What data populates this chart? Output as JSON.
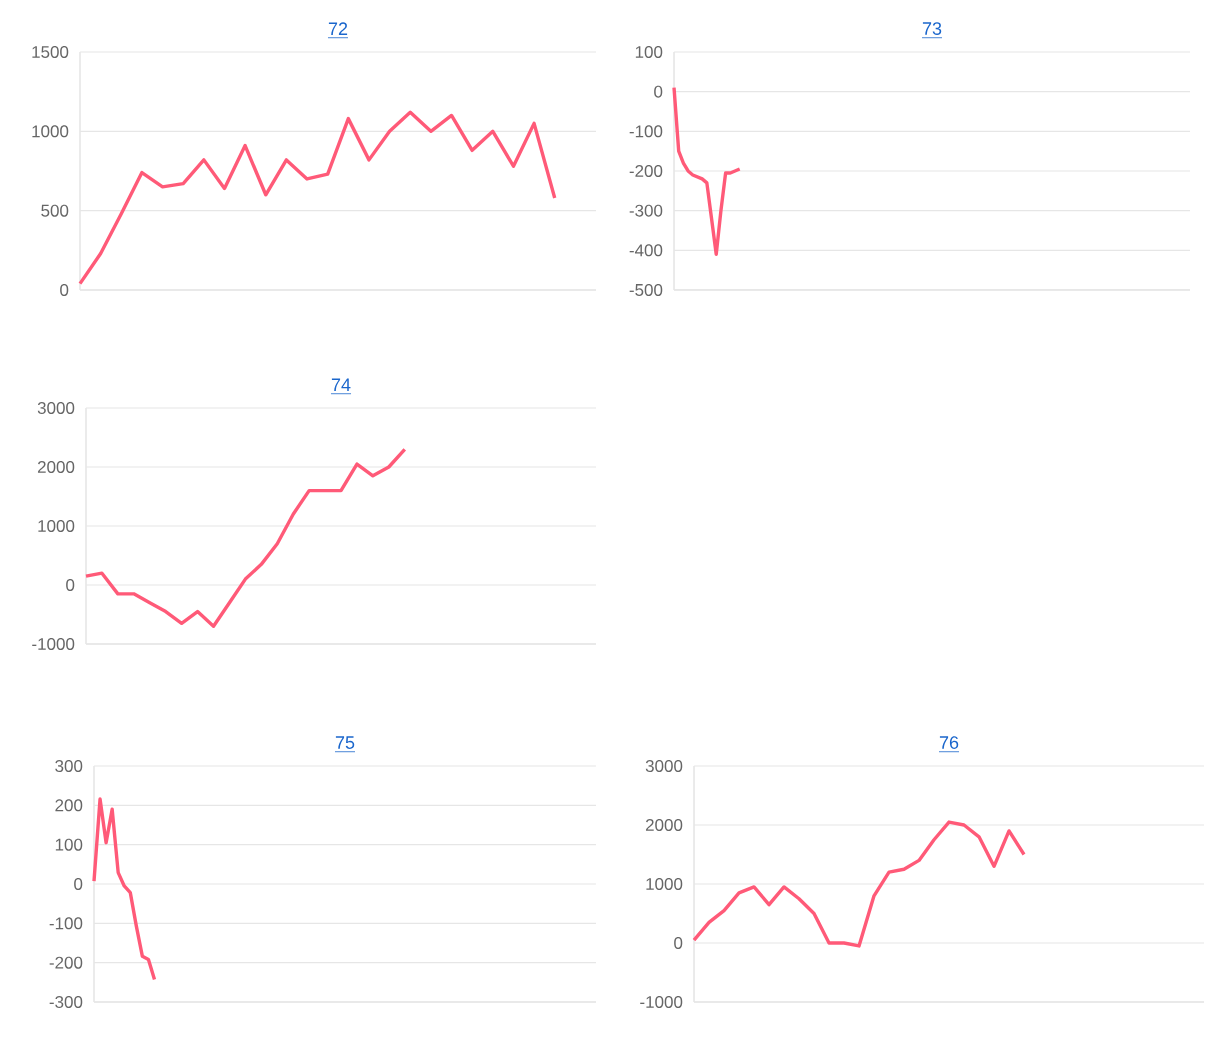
{
  "chart_data": [
    {
      "type": "line",
      "title": "72",
      "color": "#ff5a78",
      "grid": "y",
      "categories": [
        null,
        null,
        null,
        null,
        null,
        null,
        null,
        null,
        null,
        null,
        null,
        null,
        null,
        null,
        null,
        null,
        null,
        null,
        null,
        null,
        null,
        null,
        null,
        null,
        null,
        null
      ],
      "values": [
        40,
        230,
        480,
        740,
        650,
        670,
        820,
        640,
        910,
        600,
        820,
        700,
        730,
        1080,
        820,
        1000,
        1120,
        1000,
        1100,
        880,
        1000,
        780,
        1050,
        580,
        null,
        null
      ],
      "ylim": [
        0,
        1500
      ],
      "yticks": [
        0,
        500,
        1000,
        1500
      ]
    },
    {
      "type": "line",
      "title": "73",
      "color": "#ff5a78",
      "grid": "y",
      "categories": [
        null,
        null,
        null,
        null,
        null,
        null,
        null,
        null,
        null,
        null,
        null,
        null,
        null,
        null,
        null,
        null,
        null,
        null,
        null,
        null,
        null,
        null,
        null,
        null,
        null,
        null,
        null,
        null,
        null,
        null,
        null,
        null,
        null,
        null,
        null,
        null,
        null,
        null,
        null,
        null,
        null,
        null,
        null,
        null,
        null,
        null,
        null,
        null,
        null,
        null,
        null,
        null,
        null,
        null,
        null,
        null,
        null,
        null,
        null,
        null,
        null,
        null,
        null,
        null,
        null,
        null,
        null,
        null,
        null,
        null,
        null,
        null,
        null,
        null,
        null,
        null,
        null,
        null,
        null,
        null,
        null,
        null,
        null,
        null,
        null,
        null,
        null,
        null,
        null,
        null,
        null,
        null,
        null,
        null,
        null,
        null,
        null,
        null,
        null,
        null,
        null,
        null,
        null,
        null,
        null,
        null,
        null,
        null,
        null,
        null,
        null
      ],
      "values": [
        10,
        -150,
        -180,
        -200,
        -210,
        -215,
        -220,
        -230,
        -320,
        -410,
        -300,
        -205,
        -205,
        -200,
        -195,
        null,
        null,
        null,
        null,
        null,
        null,
        null,
        null,
        null,
        null,
        null,
        null,
        null,
        null,
        null,
        null,
        null,
        null,
        null,
        null,
        null,
        null,
        null,
        null,
        null,
        null,
        null,
        null,
        null,
        null,
        null,
        null,
        null,
        null,
        null,
        null,
        null,
        null,
        null,
        null,
        null,
        null,
        null,
        null,
        null,
        null,
        null,
        null,
        null,
        null,
        null,
        null,
        null,
        null,
        null,
        null,
        null,
        null,
        null,
        null,
        null,
        null,
        null,
        null,
        null,
        null,
        null,
        null,
        null,
        null,
        null,
        null,
        null,
        null,
        null,
        null,
        null,
        null,
        null,
        null,
        null,
        null,
        null,
        null,
        null,
        null,
        null,
        null,
        null,
        null,
        null,
        null,
        null,
        null,
        null,
        null
      ],
      "ylim": [
        -500,
        100
      ],
      "yticks": [
        -500,
        -400,
        -300,
        -200,
        -100,
        0,
        100
      ]
    },
    {
      "type": "line",
      "title": "74",
      "color": "#ff5a78",
      "grid": "y",
      "categories": [
        null,
        null,
        null,
        null,
        null,
        null,
        null,
        null,
        null,
        null,
        null,
        null,
        null,
        null,
        null,
        null,
        null,
        null,
        null,
        null,
        null,
        null,
        null,
        null,
        null,
        null,
        null,
        null,
        null,
        null,
        null,
        null,
        null
      ],
      "values": [
        150,
        200,
        -150,
        -150,
        -300,
        -450,
        -650,
        -450,
        -700,
        -300,
        100,
        350,
        700,
        1200,
        1600,
        1600,
        1600,
        2050,
        1850,
        2000,
        2300,
        null,
        null,
        null,
        null,
        null,
        null,
        null,
        null,
        null,
        null,
        null,
        null
      ],
      "ylim": [
        -1000,
        3000
      ],
      "yticks": [
        -1000,
        0,
        1000,
        2000,
        3000
      ]
    },
    {
      "type": "line",
      "title": "75",
      "color": "#ff5a78",
      "grid": "y",
      "categories": [
        null,
        null,
        null,
        null,
        null,
        null,
        null,
        null,
        null,
        null,
        null,
        null,
        null,
        null,
        null,
        null,
        null,
        null,
        null,
        null,
        null,
        null,
        null,
        null,
        null,
        null,
        null,
        null,
        null,
        null,
        null,
        null,
        null,
        null,
        null,
        null,
        null,
        null,
        null,
        null,
        null,
        null,
        null,
        null,
        null,
        null,
        null,
        null,
        null,
        null,
        null,
        null,
        null,
        null,
        null,
        null,
        null,
        null,
        null,
        null,
        null,
        null,
        null,
        null,
        null,
        null,
        null,
        null,
        null,
        null,
        null,
        null,
        null,
        null,
        null,
        null,
        null,
        null,
        null,
        null,
        null,
        null,
        null,
        null
      ],
      "values": [
        7,
        216,
        105,
        190,
        29,
        -5,
        -22,
        -107,
        -184,
        -192,
        -243,
        null,
        null,
        null,
        null,
        null,
        null,
        null,
        null,
        null,
        null,
        null,
        null,
        null,
        null,
        null,
        null,
        null,
        null,
        null,
        null,
        null,
        null,
        null,
        null,
        null,
        null,
        null,
        null,
        null,
        null,
        null,
        null,
        null,
        null,
        null,
        null,
        null,
        null,
        null,
        null,
        null,
        null,
        null,
        null,
        null,
        null,
        null,
        null,
        null,
        null,
        null,
        null,
        null,
        null,
        null,
        null,
        null,
        null,
        null,
        null,
        null,
        null,
        null,
        null,
        null,
        null,
        null,
        null,
        null,
        null,
        null,
        null,
        null
      ],
      "ylim": [
        -300,
        300
      ],
      "yticks": [
        -300,
        -200,
        -100,
        0,
        100,
        200,
        300
      ]
    },
    {
      "type": "line",
      "title": "76",
      "color": "#ff5a78",
      "grid": "y",
      "categories": [
        null,
        null,
        null,
        null,
        null,
        null,
        null,
        null,
        null,
        null,
        null,
        null,
        null,
        null,
        null,
        null,
        null,
        null,
        null,
        null,
        null,
        null,
        null,
        null,
        null,
        null,
        null,
        null,
        null,
        null,
        null,
        null,
        null,
        null,
        null
      ],
      "values": [
        50,
        350,
        550,
        850,
        950,
        650,
        950,
        750,
        500,
        0,
        0,
        -50,
        800,
        1200,
        1250,
        1400,
        1750,
        2050,
        2000,
        1800,
        1300,
        1900,
        1500,
        null,
        null,
        null,
        null,
        null,
        null,
        null,
        null,
        null,
        null,
        null,
        null
      ],
      "ylim": [
        -1000,
        3000
      ],
      "yticks": [
        -1000,
        0,
        1000,
        2000,
        3000
      ]
    }
  ]
}
